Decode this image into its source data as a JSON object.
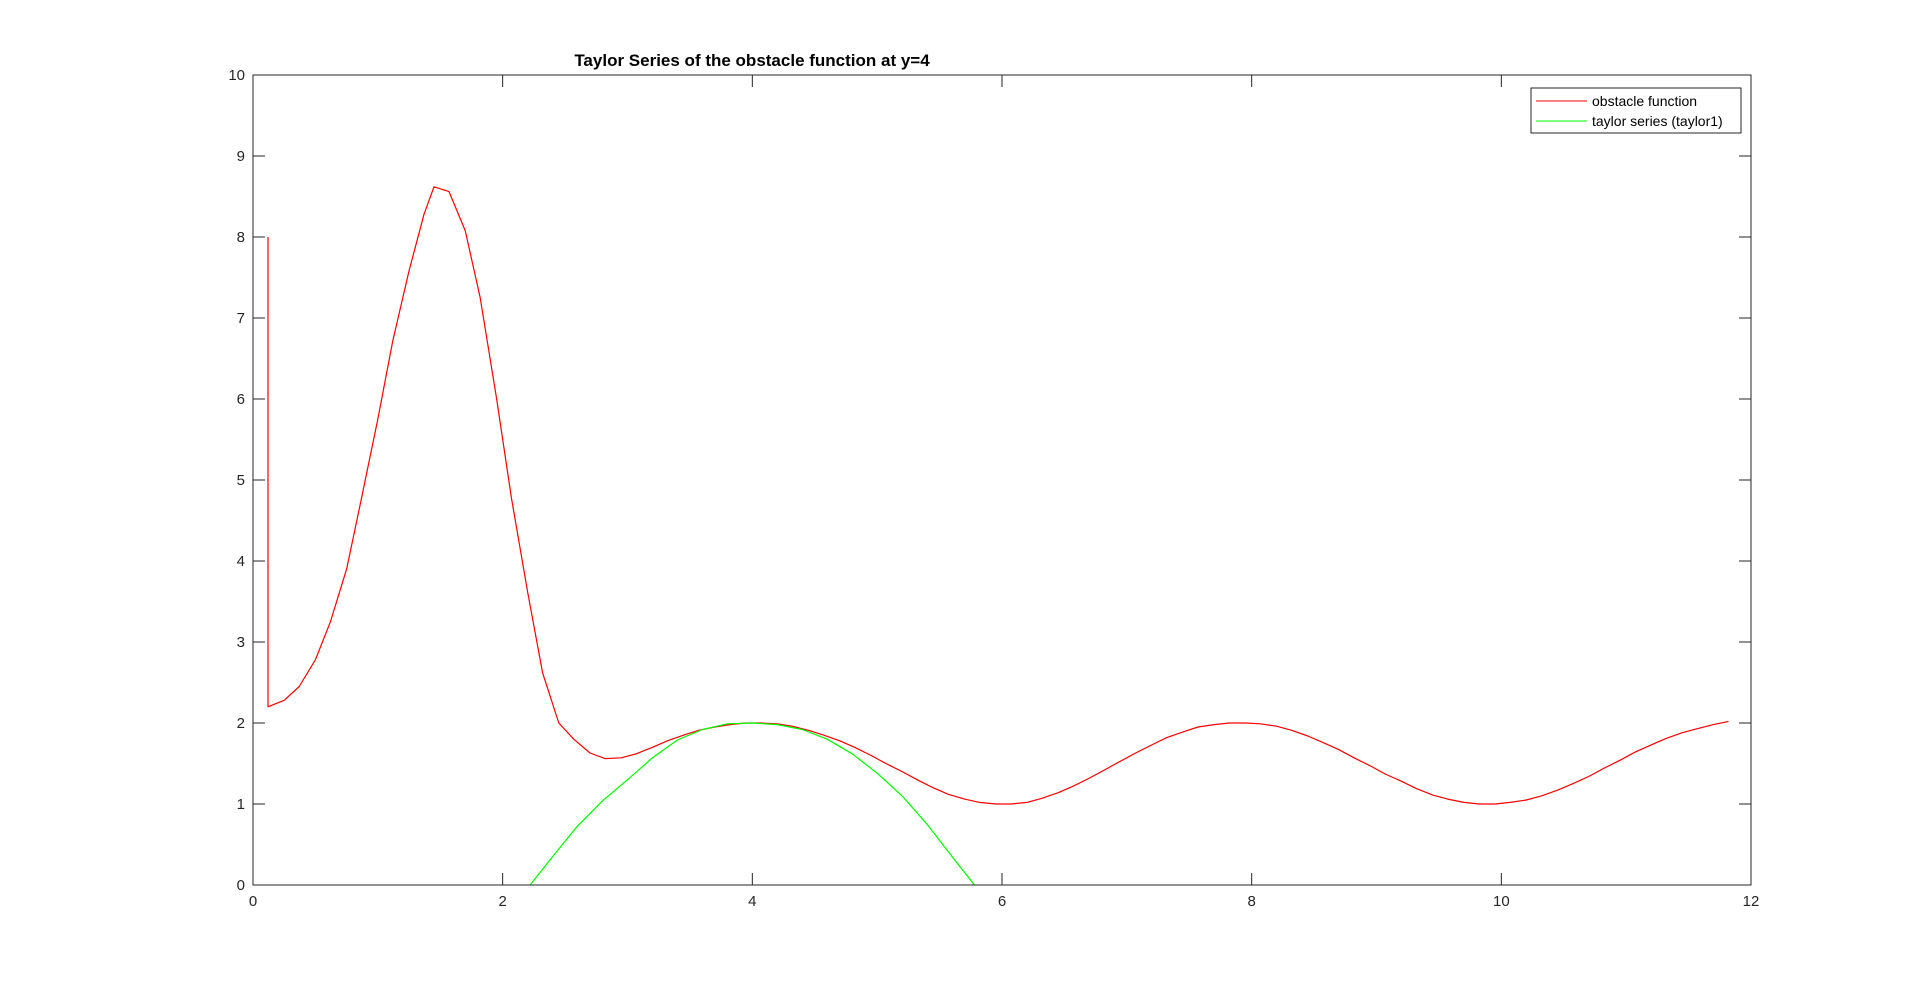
{
  "chart_data": {
    "type": "line",
    "title": "Taylor Series of the obstacle function at y=4",
    "xlabel": "",
    "ylabel": "",
    "xlim": [
      0,
      12
    ],
    "ylim": [
      0,
      10
    ],
    "xticks": [
      0,
      2,
      4,
      6,
      8,
      10,
      12
    ],
    "yticks": [
      0,
      1,
      2,
      3,
      4,
      5,
      6,
      7,
      8,
      9,
      10
    ],
    "grid": false,
    "legend_position": "top-right",
    "series": [
      {
        "name": "obstacle function",
        "color": "#ff0000",
        "x": [
          0.12,
          0.12,
          0.25,
          0.37,
          0.5,
          0.62,
          0.75,
          0.87,
          1.0,
          1.12,
          1.25,
          1.37,
          1.45,
          1.57,
          1.7,
          1.82,
          1.95,
          2.07,
          2.2,
          2.32,
          2.45,
          2.57,
          2.7,
          2.82,
          2.95,
          3.07,
          3.2,
          3.32,
          3.45,
          3.57,
          3.7,
          3.82,
          3.95,
          4.07,
          4.2,
          4.32,
          4.45,
          4.57,
          4.7,
          4.82,
          4.95,
          5.07,
          5.2,
          5.32,
          5.45,
          5.57,
          5.7,
          5.82,
          5.95,
          6.07,
          6.2,
          6.32,
          6.45,
          6.57,
          6.7,
          6.82,
          6.95,
          7.07,
          7.2,
          7.32,
          7.45,
          7.57,
          7.7,
          7.82,
          7.95,
          8.07,
          8.2,
          8.32,
          8.45,
          8.57,
          8.7,
          8.82,
          8.95,
          9.07,
          9.2,
          9.32,
          9.45,
          9.57,
          9.7,
          9.82,
          9.95,
          10.07,
          10.2,
          10.32,
          10.45,
          10.57,
          10.7,
          10.82,
          10.95,
          11.07,
          11.2,
          11.32,
          11.45,
          11.57,
          11.7,
          11.82
        ],
        "y": [
          8.0,
          2.2,
          2.28,
          2.45,
          2.78,
          3.25,
          3.9,
          4.78,
          5.75,
          6.72,
          7.58,
          8.28,
          8.62,
          8.56,
          8.08,
          7.25,
          6.02,
          4.78,
          3.62,
          2.62,
          2.0,
          1.8,
          1.63,
          1.56,
          1.57,
          1.62,
          1.7,
          1.78,
          1.85,
          1.91,
          1.95,
          1.98,
          2.0,
          2.0,
          1.99,
          1.96,
          1.91,
          1.85,
          1.78,
          1.7,
          1.6,
          1.5,
          1.4,
          1.3,
          1.2,
          1.12,
          1.06,
          1.02,
          1.0,
          1.0,
          1.02,
          1.07,
          1.14,
          1.22,
          1.32,
          1.42,
          1.53,
          1.63,
          1.73,
          1.82,
          1.89,
          1.95,
          1.98,
          2.0,
          2.0,
          1.99,
          1.96,
          1.91,
          1.84,
          1.76,
          1.67,
          1.57,
          1.47,
          1.37,
          1.28,
          1.19,
          1.11,
          1.06,
          1.02,
          1.0,
          1.0,
          1.02,
          1.05,
          1.1,
          1.17,
          1.25,
          1.34,
          1.44,
          1.54,
          1.64,
          1.73,
          1.81,
          1.88,
          1.93,
          1.98,
          2.02
        ]
      },
      {
        "name": "taylor series (taylor1)",
        "color": "#00ff00",
        "x": [
          2.22,
          2.4,
          2.6,
          2.8,
          3.0,
          3.2,
          3.4,
          3.6,
          3.8,
          4.0,
          4.2,
          4.4,
          4.6,
          4.8,
          5.0,
          5.2,
          5.4,
          5.6,
          5.78
        ],
        "y": [
          0.0,
          0.35,
          0.73,
          1.04,
          1.3,
          1.57,
          1.79,
          1.92,
          1.99,
          2.0,
          1.98,
          1.92,
          1.8,
          1.62,
          1.38,
          1.1,
          0.75,
          0.35,
          0.0
        ]
      }
    ]
  }
}
